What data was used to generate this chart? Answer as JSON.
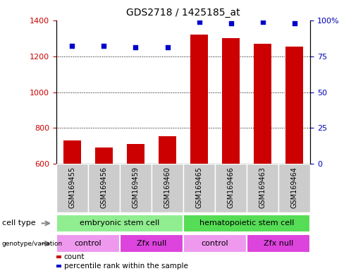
{
  "title": "GDS2718 / 1425185_at",
  "samples": [
    "GSM169455",
    "GSM169456",
    "GSM169459",
    "GSM169460",
    "GSM169465",
    "GSM169466",
    "GSM169463",
    "GSM169464"
  ],
  "counts": [
    730,
    690,
    710,
    755,
    1320,
    1300,
    1270,
    1255
  ],
  "percentile_ranks": [
    82,
    82,
    81,
    81,
    99,
    98,
    99,
    98
  ],
  "y_min": 600,
  "y_max": 1400,
  "y_ticks": [
    600,
    800,
    1000,
    1200,
    1400
  ],
  "right_y_ticks": [
    0,
    25,
    50,
    75,
    100
  ],
  "bar_color": "#cc0000",
  "dot_color": "#0000cc",
  "cell_type_groups": [
    {
      "label": "embryonic stem cell",
      "start": 0,
      "end": 4,
      "color": "#90ee90"
    },
    {
      "label": "hematopoietic stem cell",
      "start": 4,
      "end": 8,
      "color": "#55dd55"
    }
  ],
  "genotype_groups": [
    {
      "label": "control",
      "start": 0,
      "end": 2,
      "color": "#ee99ee"
    },
    {
      "label": "Zfx null",
      "start": 2,
      "end": 4,
      "color": "#dd44dd"
    },
    {
      "label": "control",
      "start": 4,
      "end": 6,
      "color": "#ee99ee"
    },
    {
      "label": "Zfx null",
      "start": 6,
      "end": 8,
      "color": "#dd44dd"
    }
  ],
  "legend_count_color": "#cc0000",
  "legend_dot_color": "#0000cc",
  "tick_label_color_left": "#cc0000",
  "tick_label_color_right": "#0000bb",
  "background_color": "#ffffff",
  "bar_bottom": 600,
  "label_box_color": "#cccccc"
}
